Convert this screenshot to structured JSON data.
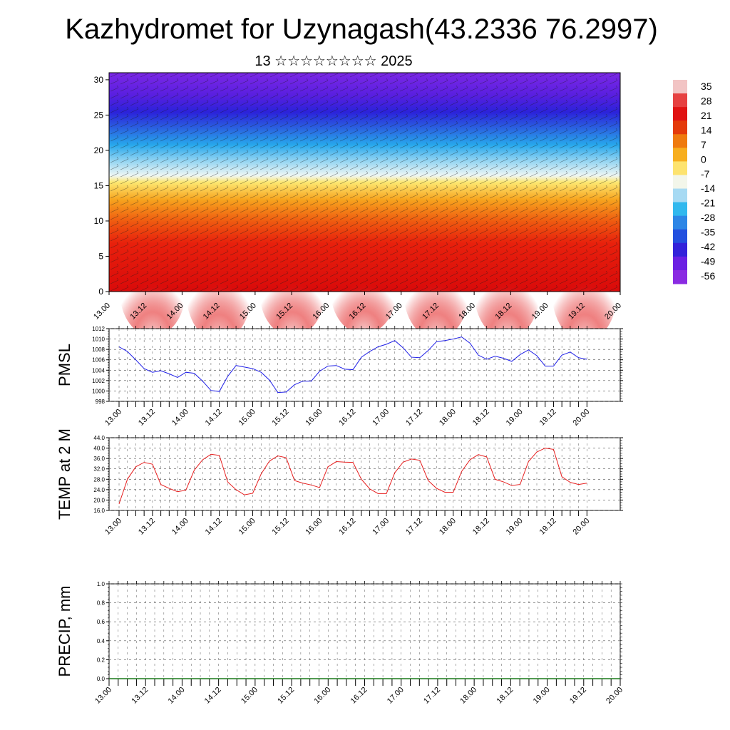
{
  "header": {
    "title": "Kazhydromet for Uzynagash(43.2336 76.2997)",
    "subtitle": "13 ☆☆☆☆☆☆☆☆ 2025"
  },
  "time_labels": [
    "13.00",
    "13.12",
    "14.00",
    "14.12",
    "15.00",
    "15.12",
    "16.00",
    "16.12",
    "17.00",
    "17.12",
    "18.00",
    "18.12",
    "19.00",
    "19.12",
    "20.00"
  ],
  "colorbar": {
    "labels": [
      "35",
      "28",
      "21",
      "14",
      "7",
      "0",
      "-7",
      "-14",
      "-21",
      "-28",
      "-35",
      "-42",
      "-49",
      "-56"
    ],
    "colors": [
      "#f2c4c4",
      "#e64141",
      "#e01313",
      "#e43a0a",
      "#ef7a0e",
      "#f7ae1f",
      "#fde36f",
      "#f3f6ea",
      "#a7daf3",
      "#31b8ee",
      "#2d86e6",
      "#2350df",
      "#3322da",
      "#6b20e3",
      "#8a2be2"
    ]
  },
  "chart_data": [
    {
      "type": "heatmap",
      "title": "",
      "xlabel": "",
      "ylabel": "",
      "x_ticks": [
        "13.00",
        "13.12",
        "14.00",
        "14.12",
        "15.00",
        "15.12",
        "16.00",
        "16.12",
        "17.00",
        "17.12",
        "18.00",
        "18.12",
        "19.00",
        "19.12",
        "20.00"
      ],
      "y_ticks": [
        0,
        5,
        10,
        15,
        20,
        25,
        30
      ],
      "ylim": [
        0,
        31
      ],
      "z_range": [
        -56,
        35
      ],
      "overlay": "wind barbs"
    },
    {
      "type": "line",
      "ylabel": "PMSL",
      "ylim": [
        998,
        1012
      ],
      "y_ticks": [
        "998",
        "1000",
        "1002",
        "1004",
        "1006",
        "1008",
        "1010",
        "1012"
      ],
      "x": [
        "13.00",
        "13.03",
        "13.06",
        "13.09",
        "13.12",
        "13.15",
        "13.18",
        "13.21",
        "14.00",
        "14.03",
        "14.06",
        "14.09",
        "14.12",
        "14.15",
        "14.18",
        "14.21",
        "15.00",
        "15.03",
        "15.06",
        "15.09",
        "15.12",
        "15.15",
        "15.18",
        "15.21",
        "16.00",
        "16.03",
        "16.06",
        "16.09",
        "16.12",
        "16.15",
        "16.18",
        "16.21",
        "17.00",
        "17.03",
        "17.06",
        "17.09",
        "17.12",
        "17.15",
        "17.18",
        "17.21",
        "18.00",
        "18.03",
        "18.06",
        "18.09",
        "18.12",
        "18.15",
        "18.18",
        "18.21",
        "19.00",
        "19.03",
        "19.06",
        "19.09",
        "19.12",
        "19.15",
        "19.18",
        "19.21",
        "20.00"
      ],
      "series": [
        {
          "color": "#1f1fe6",
          "values": [
            1008.5,
            1007.6,
            1006.0,
            1004.3,
            1003.6,
            1003.9,
            1003.3,
            1002.6,
            1003.6,
            1003.4,
            1001.9,
            1000.1,
            999.9,
            1002.8,
            1004.9,
            1004.6,
            1004.3,
            1003.6,
            1002.1,
            999.7,
            999.8,
            1001.2,
            1001.9,
            1001.9,
            1003.8,
            1004.8,
            1004.9,
            1004.2,
            1004.1,
            1006.5,
            1007.6,
            1008.5,
            1009.0,
            1009.7,
            1008.3,
            1006.5,
            1006.4,
            1007.8,
            1009.5,
            1009.7,
            1010.0,
            1010.4,
            1009.2,
            1006.9,
            1006.1,
            1006.7,
            1006.3,
            1005.7,
            1007.0,
            1007.9,
            1006.8,
            1004.8,
            1004.8,
            1006.9,
            1007.5,
            1006.4,
            1006.1
          ]
        }
      ]
    },
    {
      "type": "line",
      "ylabel": "TEMP at 2 M",
      "ylim": [
        16,
        44
      ],
      "y_ticks": [
        "16.0",
        "20.0",
        "24.0",
        "28.0",
        "32.0",
        "36.0",
        "40.0",
        "44.0"
      ],
      "x": [
        "13.00",
        "13.03",
        "13.06",
        "13.09",
        "13.12",
        "13.15",
        "13.18",
        "13.21",
        "14.00",
        "14.03",
        "14.06",
        "14.09",
        "14.12",
        "14.15",
        "14.18",
        "14.21",
        "15.00",
        "15.03",
        "15.06",
        "15.09",
        "15.12",
        "15.15",
        "15.18",
        "15.21",
        "16.00",
        "16.03",
        "16.06",
        "16.09",
        "16.12",
        "16.15",
        "16.18",
        "16.21",
        "17.00",
        "17.03",
        "17.06",
        "17.09",
        "17.12",
        "17.15",
        "17.18",
        "17.21",
        "18.00",
        "18.03",
        "18.06",
        "18.09",
        "18.12",
        "18.15",
        "18.18",
        "18.21",
        "19.00",
        "19.03",
        "19.06",
        "19.09",
        "19.12",
        "19.15",
        "19.18",
        "19.21",
        "20.00"
      ],
      "series": [
        {
          "color": "#e61f1f",
          "values": [
            18.5,
            28.0,
            32.8,
            34.5,
            33.8,
            26.0,
            24.5,
            23.2,
            23.8,
            31.5,
            35.5,
            37.6,
            37.2,
            27.0,
            24.0,
            22.0,
            22.6,
            30.0,
            35.0,
            37.0,
            36.3,
            27.5,
            26.5,
            25.8,
            24.8,
            32.8,
            34.8,
            34.6,
            34.5,
            28.0,
            24.3,
            22.5,
            22.5,
            30.5,
            34.6,
            35.8,
            35.3,
            27.5,
            24.5,
            23.0,
            23.0,
            31.0,
            35.5,
            37.5,
            36.6,
            28.0,
            27.0,
            25.6,
            26.0,
            34.8,
            38.5,
            40.0,
            39.5,
            29.0,
            26.8,
            26.0,
            26.5
          ]
        }
      ]
    },
    {
      "type": "line",
      "ylabel": "PRECIP, mm",
      "ylim": [
        0,
        1
      ],
      "y_ticks": [
        "0.0",
        "0.2",
        "0.4",
        "0.6",
        "0.8",
        "1.0"
      ],
      "x_ticks": [
        "13.00",
        "13.12",
        "14.00",
        "14.12",
        "15.00",
        "15.12",
        "16.00",
        "16.12",
        "17.00",
        "17.12",
        "18.00",
        "18.12",
        "19.00",
        "19.12",
        "20.00"
      ],
      "series": [
        {
          "color": "#1a7a1a",
          "values": [
            0,
            0,
            0,
            0,
            0,
            0,
            0,
            0,
            0,
            0,
            0,
            0,
            0,
            0,
            0
          ]
        }
      ]
    }
  ]
}
